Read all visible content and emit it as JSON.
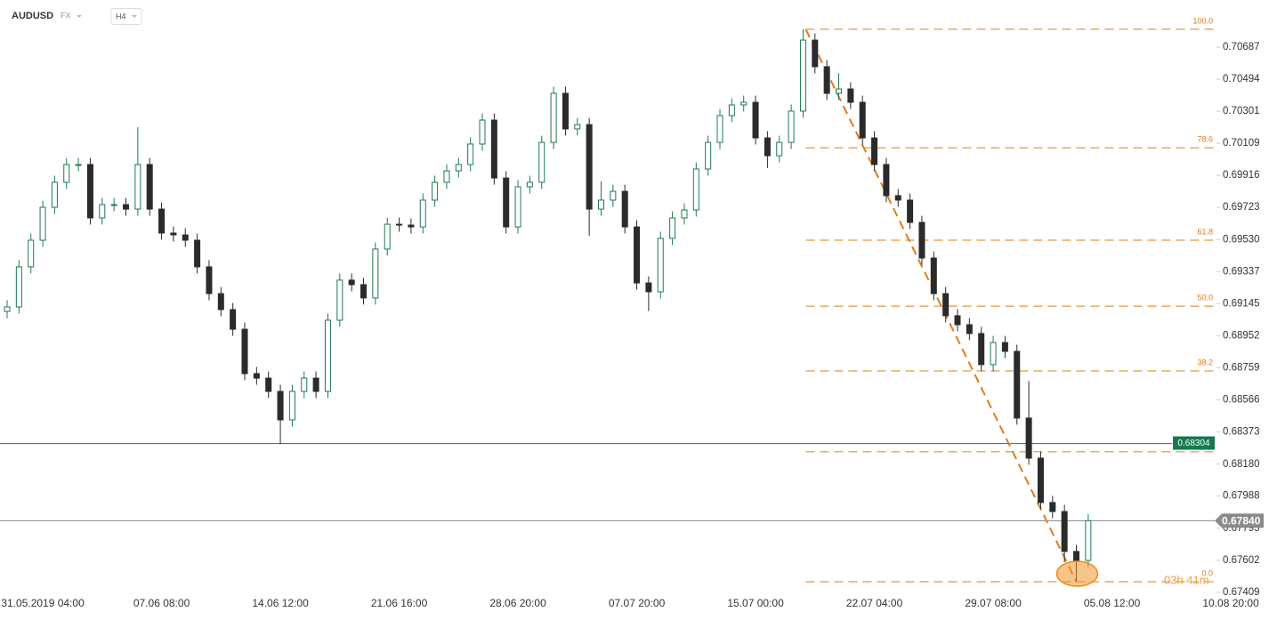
{
  "chart_data": {
    "type": "candlestick",
    "symbol": "AUDUSD",
    "market": "FX",
    "timeframe": "H4",
    "up_color": "#1e7b4f",
    "down_color": "#2b2b2b",
    "fib_color": "#e07b1a",
    "ylim": [
      0.67398,
      0.7097
    ],
    "yticks": [
      0.70687,
      0.70494,
      0.70301,
      0.70109,
      0.69916,
      0.69723,
      {
        "value": 0.6953,
        "label": "0.69530"
      },
      0.69337,
      0.69145,
      0.68952,
      0.68759,
      0.68566,
      0.68373,
      {
        "value": 0.6818,
        "label": "0.68180"
      },
      0.67988,
      0.67795,
      0.67602,
      0.67409
    ],
    "categories": [
      null,
      null,
      null,
      "31.05.2019 04:00",
      null,
      null,
      null,
      null,
      null,
      null,
      null,
      null,
      null,
      "07.06 08:00",
      null,
      null,
      null,
      null,
      null,
      null,
      null,
      null,
      null,
      "14.06 12:00",
      null,
      null,
      null,
      null,
      null,
      null,
      null,
      null,
      null,
      "21.06 16:00",
      null,
      null,
      null,
      null,
      null,
      null,
      null,
      null,
      null,
      "28.06 20:00",
      null,
      null,
      null,
      null,
      null,
      null,
      null,
      null,
      null,
      "07.07 20:00",
      null,
      null,
      null,
      null,
      null,
      null,
      null,
      null,
      null,
      "15.07 00:00",
      null,
      null,
      null,
      null,
      null,
      null,
      null,
      null,
      null,
      "22.07 04:00",
      null,
      null,
      null,
      null,
      null,
      null,
      null,
      null,
      null,
      "29.07 08:00",
      null,
      null,
      null,
      null,
      null,
      null,
      null,
      null,
      null,
      "05.08 12:00",
      null,
      null,
      null,
      null,
      null,
      null,
      null,
      null,
      null,
      "10.08 20:00"
    ],
    "ohlc": [
      [
        0.69098,
        0.69165,
        0.69058,
        0.69125
      ],
      [
        0.69125,
        0.69406,
        0.69085,
        0.69366
      ],
      [
        0.69366,
        0.69566,
        0.69326,
        0.69526
      ],
      [
        0.69526,
        0.69764,
        0.69486,
        0.69724
      ],
      [
        0.69724,
        0.69914,
        0.69684,
        0.69874
      ],
      [
        0.69874,
        0.70021,
        0.69834,
        0.69981
      ],
      [
        0.69981,
        0.70021,
        0.69941,
        0.69981
      ],
      [
        0.69981,
        0.70021,
        0.6962,
        0.6966
      ],
      [
        0.6966,
        0.6978,
        0.6962,
        0.6974
      ],
      [
        0.6974,
        0.6978,
        0.697,
        0.6974
      ],
      [
        0.6974,
        0.6978,
        0.69673,
        0.69713
      ],
      [
        0.69713,
        0.70205,
        0.69673,
        0.69981
      ],
      [
        0.69981,
        0.70021,
        0.69673,
        0.69713
      ],
      [
        0.69713,
        0.69753,
        0.69529,
        0.69569
      ],
      [
        0.69569,
        0.69609,
        0.69518,
        0.69558
      ],
      [
        0.69558,
        0.69598,
        0.69486,
        0.69526
      ],
      [
        0.69526,
        0.69566,
        0.69326,
        0.69366
      ],
      [
        0.69366,
        0.69406,
        0.69165,
        0.69205
      ],
      [
        0.69205,
        0.69245,
        0.69069,
        0.69109
      ],
      [
        0.69109,
        0.69149,
        0.68951,
        0.68991
      ],
      [
        0.68991,
        0.69031,
        0.68684,
        0.68724
      ],
      [
        0.68724,
        0.68764,
        0.68657,
        0.68697
      ],
      [
        0.68697,
        0.68737,
        0.68577,
        0.68617
      ],
      [
        0.68617,
        0.68657,
        0.683,
        0.68446
      ],
      [
        0.68446,
        0.68657,
        0.68406,
        0.68617
      ],
      [
        0.68617,
        0.68737,
        0.68577,
        0.68697
      ],
      [
        0.68697,
        0.68737,
        0.68577,
        0.68617
      ],
      [
        0.68617,
        0.69085,
        0.68577,
        0.69045
      ],
      [
        0.69045,
        0.69326,
        0.69005,
        0.69286
      ],
      [
        0.69286,
        0.69326,
        0.69219,
        0.69259
      ],
      [
        0.69259,
        0.69299,
        0.69139,
        0.69179
      ],
      [
        0.69179,
        0.69513,
        0.69139,
        0.69473
      ],
      [
        0.69473,
        0.69662,
        0.69433,
        0.69622
      ],
      [
        0.69622,
        0.69662,
        0.69577,
        0.69617
      ],
      [
        0.69617,
        0.69657,
        0.69566,
        0.69606
      ],
      [
        0.69606,
        0.69807,
        0.69566,
        0.69767
      ],
      [
        0.69767,
        0.69914,
        0.69727,
        0.69874
      ],
      [
        0.69874,
        0.69983,
        0.69834,
        0.69943
      ],
      [
        0.69943,
        0.70021,
        0.69903,
        0.69981
      ],
      [
        0.69981,
        0.70144,
        0.69941,
        0.70104
      ],
      [
        0.70104,
        0.70288,
        0.70064,
        0.70248
      ],
      [
        0.70248,
        0.70288,
        0.6986,
        0.699
      ],
      [
        0.699,
        0.6994,
        0.69566,
        0.69606
      ],
      [
        0.69606,
        0.69887,
        0.69566,
        0.69847
      ],
      [
        0.69847,
        0.69914,
        0.69807,
        0.69874
      ],
      [
        0.69874,
        0.70154,
        0.69834,
        0.70114
      ],
      [
        0.70114,
        0.70449,
        0.70074,
        0.70409
      ],
      [
        0.70409,
        0.70449,
        0.70155,
        0.70195
      ],
      [
        0.70195,
        0.70261,
        0.70155,
        0.70221
      ],
      [
        0.70221,
        0.70261,
        0.69553,
        0.69713
      ],
      [
        0.69713,
        0.6988,
        0.69673,
        0.69767
      ],
      [
        0.69767,
        0.6986,
        0.69727,
        0.6982
      ],
      [
        0.6982,
        0.6986,
        0.69566,
        0.69606
      ],
      [
        0.69606,
        0.69646,
        0.69229,
        0.69269
      ],
      [
        0.69269,
        0.69309,
        0.691,
        0.69216
      ],
      [
        0.69216,
        0.69577,
        0.69176,
        0.69537
      ],
      [
        0.69537,
        0.697,
        0.69497,
        0.6966
      ],
      [
        0.6966,
        0.69748,
        0.6962,
        0.69708
      ],
      [
        0.69708,
        0.69994,
        0.69668,
        0.69954
      ],
      [
        0.69954,
        0.70154,
        0.69914,
        0.70114
      ],
      [
        0.70114,
        0.70315,
        0.70074,
        0.70275
      ],
      [
        0.70275,
        0.70379,
        0.70235,
        0.70339
      ],
      [
        0.70339,
        0.70395,
        0.70299,
        0.70355
      ],
      [
        0.70355,
        0.70395,
        0.70101,
        0.70141
      ],
      [
        0.70141,
        0.70181,
        0.6996,
        0.70034
      ],
      [
        0.70034,
        0.70154,
        0.69994,
        0.70114
      ],
      [
        0.70114,
        0.70342,
        0.70074,
        0.70302
      ],
      [
        0.70302,
        0.70794,
        0.70262,
        0.70729
      ],
      [
        0.70729,
        0.70769,
        0.70529,
        0.70569
      ],
      [
        0.70569,
        0.70609,
        0.70369,
        0.70409
      ],
      [
        0.70409,
        0.7053,
        0.70369,
        0.70435
      ],
      [
        0.70435,
        0.70475,
        0.70315,
        0.70355
      ],
      [
        0.70355,
        0.70395,
        0.70101,
        0.70141
      ],
      [
        0.70141,
        0.70181,
        0.69941,
        0.69981
      ],
      [
        0.69981,
        0.70021,
        0.69754,
        0.69794
      ],
      [
        0.69794,
        0.69834,
        0.69727,
        0.69767
      ],
      [
        0.69767,
        0.69807,
        0.69593,
        0.69633
      ],
      [
        0.69633,
        0.69673,
        0.69379,
        0.69419
      ],
      [
        0.69419,
        0.69459,
        0.69165,
        0.69205
      ],
      [
        0.69205,
        0.69245,
        0.69032,
        0.69072
      ],
      [
        0.69072,
        0.69112,
        0.68978,
        0.69018
      ],
      [
        0.69018,
        0.69058,
        0.68925,
        0.68965
      ],
      [
        0.68965,
        0.69005,
        0.68738,
        0.68778
      ],
      [
        0.68778,
        0.68951,
        0.68738,
        0.68911
      ],
      [
        0.68911,
        0.68951,
        0.68818,
        0.68858
      ],
      [
        0.68858,
        0.68898,
        0.68417,
        0.68457
      ],
      [
        0.68457,
        0.6868,
        0.68176,
        0.68216
      ],
      [
        0.68216,
        0.68256,
        0.67909,
        0.67949
      ],
      [
        0.67949,
        0.67989,
        0.67855,
        0.67895
      ],
      [
        0.67895,
        0.67935,
        0.6759,
        0.67655
      ],
      [
        0.67655,
        0.67695,
        0.67473,
        0.67601
      ],
      [
        0.67601,
        0.6788,
        0.67561,
        0.6784
      ],
      null,
      null,
      null,
      null,
      null,
      null,
      null,
      null,
      null,
      null,
      null,
      null
    ],
    "fib_levels": [
      {
        "label": "100.0",
        "value": 0.70794
      },
      {
        "label": "78.6",
        "value": 0.70082
      },
      {
        "label": "61.8",
        "value": 0.69526
      },
      {
        "label": "50.0",
        "value": 0.6913
      },
      {
        "label": "38.2",
        "value": 0.6874
      },
      {
        "label": null,
        "value": 0.68254
      },
      {
        "label": "0.0",
        "value": 0.67473
      }
    ],
    "level_line": {
      "value": 0.68304,
      "color": "#147a4f"
    },
    "last_price": {
      "value": 0.6784,
      "label": "0.67840",
      "color": "#8a8a8a"
    },
    "countdown": "03h 41m"
  }
}
